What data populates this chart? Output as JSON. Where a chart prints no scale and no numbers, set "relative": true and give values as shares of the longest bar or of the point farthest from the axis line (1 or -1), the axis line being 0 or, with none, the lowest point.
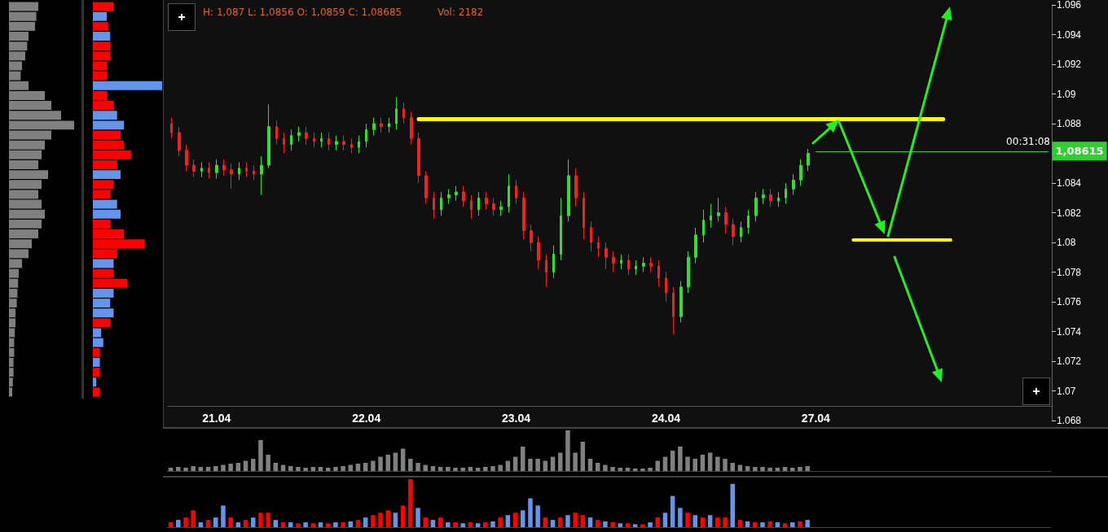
{
  "chart_data": [
    {
      "type": "bar",
      "orientation": "horizontal",
      "relative": true,
      "color": "#808080",
      "categories": [
        null,
        null,
        null,
        null,
        null,
        null,
        null,
        null,
        null,
        null,
        null,
        null,
        null,
        null,
        null,
        null,
        null,
        null,
        null,
        null,
        null,
        null,
        null,
        null,
        null,
        null,
        null,
        null,
        null,
        null,
        null,
        null,
        null,
        null,
        null,
        null,
        null,
        null,
        null,
        null
      ],
      "values": [
        0.45,
        0.42,
        0.4,
        0.3,
        0.28,
        0.25,
        0.2,
        0.18,
        0.3,
        0.55,
        0.65,
        0.8,
        1.0,
        0.65,
        0.55,
        0.5,
        0.45,
        0.6,
        0.5,
        0.45,
        0.5,
        0.55,
        0.5,
        0.45,
        0.35,
        0.3,
        0.2,
        0.15,
        0.14,
        0.13,
        0.12,
        0.1,
        0.1,
        0.09,
        0.08,
        0.08,
        0.07,
        0.07,
        0.06,
        0.05
      ]
    },
    {
      "type": "bar",
      "orientation": "horizontal",
      "relative": true,
      "categories": [
        null,
        null,
        null,
        null,
        null,
        null,
        null,
        null,
        null,
        null,
        null,
        null,
        null,
        null,
        null,
        null,
        null,
        null,
        null,
        null,
        null,
        null,
        null,
        null,
        null,
        null,
        null,
        null,
        null,
        null,
        null,
        null,
        null,
        null,
        null,
        null,
        null,
        null,
        null,
        null
      ],
      "values": [
        0.3,
        0.2,
        0.22,
        0.25,
        0.25,
        0.25,
        0.2,
        0.2,
        1.0,
        0.2,
        0.3,
        0.35,
        0.45,
        0.4,
        0.45,
        0.55,
        0.35,
        0.4,
        0.3,
        0.25,
        0.35,
        0.4,
        0.25,
        0.45,
        0.75,
        0.35,
        0.3,
        0.3,
        0.5,
        0.3,
        0.25,
        0.3,
        0.25,
        0.12,
        0.15,
        0.1,
        0.1,
        0.1,
        0.05,
        0.1
      ],
      "colors": [
        "#ff0000",
        "#6495ed",
        "#ff0000",
        "#6495ed",
        "#ff0000",
        "#ff0000",
        "#ff0000",
        "#ff0000",
        "#6495ed",
        "#ff0000",
        "#ff0000",
        "#6495ed",
        "#6495ed",
        "#ff0000",
        "#ff0000",
        "#ff0000",
        "#ff0000",
        "#6495ed",
        "#ff0000",
        "#ff0000",
        "#6495ed",
        "#6495ed",
        "#ff0000",
        "#ff0000",
        "#ff0000",
        "#ff0000",
        "#6495ed",
        "#ff0000",
        "#ff0000",
        "#6495ed",
        "#6495ed",
        "#6495ed",
        "#ff0000",
        "#6495ed",
        "#6495ed",
        "#ff0000",
        "#6495ed",
        "#ff0000",
        "#6495ed",
        "#ff0000"
      ]
    },
    {
      "type": "candlestick",
      "annotations": [
        "H: 1,087 L: 1,0856 O: 1,0859 C: 1,08685",
        "Vol: 2182",
        "00:31:08"
      ],
      "categories": [
        null,
        null,
        null,
        null,
        null,
        null,
        "21.04",
        null,
        null,
        null,
        null,
        null,
        null,
        null,
        null,
        null,
        null,
        null,
        null,
        null,
        null,
        null,
        null,
        null,
        null,
        null,
        "22.04",
        null,
        null,
        null,
        null,
        null,
        null,
        null,
        null,
        null,
        null,
        null,
        null,
        null,
        null,
        null,
        null,
        null,
        null,
        null,
        "23.04",
        null,
        null,
        null,
        null,
        null,
        null,
        null,
        null,
        null,
        null,
        null,
        null,
        null,
        null,
        null,
        null,
        null,
        null,
        null,
        "24.04",
        null,
        null,
        null,
        null,
        null,
        null,
        null,
        null,
        null,
        null,
        null,
        null,
        null,
        null,
        null,
        null,
        null,
        null,
        null,
        "27.04",
        null,
        null,
        null,
        null,
        null,
        null,
        null,
        null,
        null,
        null,
        null,
        null,
        null,
        null,
        null,
        null,
        null,
        null,
        null,
        null,
        null,
        null,
        null,
        null,
        null,
        null,
        null,
        null,
        null,
        null,
        null
      ],
      "ohlc": [
        [
          1.088,
          1.0884,
          1.087,
          1.0874
        ],
        [
          1.0874,
          1.0878,
          1.0858,
          1.0862
        ],
        [
          1.0862,
          1.0866,
          1.0848,
          1.0852
        ],
        [
          1.0852,
          1.0856,
          1.0844,
          1.0848
        ],
        [
          1.0848,
          1.0854,
          1.0844,
          1.085
        ],
        [
          1.085,
          1.0854,
          1.0843,
          1.0847
        ],
        [
          1.0847,
          1.0856,
          1.0843,
          1.0852
        ],
        [
          1.0852,
          1.0856,
          1.0845,
          1.0849
        ],
        [
          1.0849,
          1.0853,
          1.0836,
          1.0846
        ],
        [
          1.0846,
          1.0854,
          1.0842,
          1.085
        ],
        [
          1.085,
          1.0854,
          1.0844,
          1.0848
        ],
        [
          1.0848,
          1.0852,
          1.0842,
          1.0846
        ],
        [
          1.0846,
          1.0858,
          1.0832,
          1.0852
        ],
        [
          1.0852,
          1.0893,
          1.085,
          1.0878
        ],
        [
          1.0878,
          1.0882,
          1.0866,
          1.087
        ],
        [
          1.087,
          1.0874,
          1.086,
          1.0866
        ],
        [
          1.0866,
          1.0876,
          1.0862,
          1.0872
        ],
        [
          1.0872,
          1.0878,
          1.0868,
          1.0874
        ],
        [
          1.0874,
          1.0878,
          1.0866,
          1.087
        ],
        [
          1.087,
          1.0874,
          1.0864,
          1.0868
        ],
        [
          1.0868,
          1.0874,
          1.0864,
          1.087
        ],
        [
          1.087,
          1.0874,
          1.0862,
          1.0866
        ],
        [
          1.0866,
          1.0872,
          1.0862,
          1.0868
        ],
        [
          1.0868,
          1.0872,
          1.0862,
          1.0866
        ],
        [
          1.0866,
          1.087,
          1.086,
          1.0864
        ],
        [
          1.0864,
          1.0872,
          1.086,
          1.0868
        ],
        [
          1.0868,
          1.088,
          1.0864,
          1.0876
        ],
        [
          1.0876,
          1.0884,
          1.0872,
          1.088
        ],
        [
          1.088,
          1.0884,
          1.0874,
          1.0878
        ],
        [
          1.0878,
          1.0884,
          1.0874,
          1.088
        ],
        [
          1.088,
          1.0898,
          1.0876,
          1.089
        ],
        [
          1.089,
          1.0894,
          1.088,
          1.0884
        ],
        [
          1.0884,
          1.0888,
          1.0866,
          1.087
        ],
        [
          1.087,
          1.0874,
          1.084,
          1.0845
        ],
        [
          1.0845,
          1.0848,
          1.0826,
          1.083
        ],
        [
          1.083,
          1.0834,
          1.0816,
          1.0822
        ],
        [
          1.0822,
          1.0834,
          1.0818,
          1.083
        ],
        [
          1.083,
          1.0836,
          1.0826,
          1.0832
        ],
        [
          1.0832,
          1.0838,
          1.0828,
          1.0834
        ],
        [
          1.0834,
          1.0838,
          1.0824,
          1.0828
        ],
        [
          1.0828,
          1.0832,
          1.0816,
          1.0822
        ],
        [
          1.0822,
          1.0834,
          1.0818,
          1.083
        ],
        [
          1.083,
          1.0834,
          1.0822,
          1.0826
        ],
        [
          1.0826,
          1.083,
          1.0818,
          1.0822
        ],
        [
          1.0822,
          1.0828,
          1.0818,
          1.0824
        ],
        [
          1.0824,
          1.0846,
          1.082,
          1.0838
        ],
        [
          1.0838,
          1.0842,
          1.0826,
          1.083
        ],
        [
          1.083,
          1.0834,
          1.0802,
          1.0808
        ],
        [
          1.0808,
          1.0812,
          1.0794,
          1.08
        ],
        [
          1.08,
          1.0804,
          1.0782,
          1.0788
        ],
        [
          1.0788,
          1.0792,
          1.077,
          1.078
        ],
        [
          1.078,
          1.0798,
          1.0776,
          1.0792
        ],
        [
          1.0792,
          1.083,
          1.0788,
          1.0818
        ],
        [
          1.0818,
          1.0856,
          1.0814,
          1.0845
        ],
        [
          1.0845,
          1.085,
          1.0824,
          1.083
        ],
        [
          1.083,
          1.0834,
          1.0802,
          1.081
        ],
        [
          1.081,
          1.0814,
          1.0794,
          1.08
        ],
        [
          1.08,
          1.0804,
          1.079,
          1.0796
        ],
        [
          1.0796,
          1.08,
          1.0782,
          1.079
        ],
        [
          1.079,
          1.0794,
          1.078,
          1.0786
        ],
        [
          1.0786,
          1.0792,
          1.0782,
          1.0788
        ],
        [
          1.0788,
          1.0792,
          1.0778,
          1.0782
        ],
        [
          1.0782,
          1.0788,
          1.0778,
          1.0784
        ],
        [
          1.0784,
          1.079,
          1.078,
          1.0786
        ],
        [
          1.0786,
          1.079,
          1.078,
          1.0784
        ],
        [
          1.0784,
          1.0788,
          1.077,
          1.0776
        ],
        [
          1.0776,
          1.078,
          1.076,
          1.0766
        ],
        [
          1.0766,
          1.077,
          1.0738,
          1.075
        ],
        [
          1.075,
          1.0774,
          1.0746,
          1.077
        ],
        [
          1.077,
          1.0794,
          1.0766,
          1.079
        ],
        [
          1.079,
          1.081,
          1.0786,
          1.0805
        ],
        [
          1.0805,
          1.0822,
          1.08,
          1.0815
        ],
        [
          1.0815,
          1.0826,
          1.081,
          1.0818
        ],
        [
          1.0818,
          1.083,
          1.0814,
          1.082
        ],
        [
          1.082,
          1.0824,
          1.0806,
          1.0812
        ],
        [
          1.0812,
          1.0816,
          1.0798,
          1.0804
        ],
        [
          1.0804,
          1.0814,
          1.08,
          1.081
        ],
        [
          1.081,
          1.0822,
          1.0806,
          1.0818
        ],
        [
          1.0818,
          1.0834,
          1.0814,
          1.083
        ],
        [
          1.083,
          1.0836,
          1.0826,
          1.0832
        ],
        [
          1.0832,
          1.0836,
          1.0824,
          1.0828
        ],
        [
          1.0828,
          1.0834,
          1.0824,
          1.083
        ],
        [
          1.083,
          1.084,
          1.0826,
          1.0836
        ],
        [
          1.0836,
          1.0846,
          1.0832,
          1.0842
        ],
        [
          1.0842,
          1.0856,
          1.0838,
          1.0852
        ],
        [
          1.0852,
          1.0863,
          1.0848,
          1.086
        ],
        null,
        null,
        null,
        null,
        null,
        null,
        null,
        null,
        null,
        null,
        null,
        null,
        null,
        null,
        null,
        null,
        null,
        null,
        null,
        null,
        null,
        null,
        null,
        null,
        null,
        null,
        null,
        null,
        null,
        null,
        null,
        null
      ],
      "ylim": [
        1.068,
        1.096
      ],
      "yticks": [
        1.068,
        1.07,
        1.072,
        1.074,
        1.076,
        1.078,
        1.08,
        1.082,
        1.084,
        {
          "value": 1.086,
          "label": null
        },
        1.088,
        1.09,
        1.092,
        1.094,
        1.096
      ],
      "ref_lines": [
        {
          "axis": "y",
          "value": 1.0883,
          "color": "#ffff00"
        },
        {
          "axis": "y",
          "value": 1.0802,
          "color": "#ffff00"
        },
        {
          "axis": "y",
          "value": 1.08615,
          "label": "1,08615",
          "color": "#33cc33"
        }
      ]
    },
    {
      "type": "bar",
      "relative": true,
      "color": "#808080",
      "categories": [
        null,
        null,
        null,
        null,
        null,
        null,
        null,
        null,
        null,
        null,
        null,
        null,
        null,
        null,
        null,
        null,
        null,
        null,
        null,
        null,
        null,
        null,
        null,
        null,
        null,
        null,
        null,
        null,
        null,
        null,
        null,
        null,
        null,
        null,
        null,
        null,
        null,
        null,
        null,
        null,
        null,
        null,
        null,
        null,
        null,
        null,
        null,
        null,
        null,
        null,
        null,
        null,
        null,
        null,
        null,
        null,
        null,
        null,
        null,
        null,
        null,
        null,
        null,
        null,
        null,
        null,
        null,
        null,
        null,
        null,
        null,
        null,
        null,
        null,
        null,
        null,
        null,
        null,
        null,
        null,
        null,
        null,
        null,
        null,
        null,
        null,
        null,
        null,
        null,
        null,
        null,
        null,
        null,
        null,
        null,
        null,
        null,
        null,
        null,
        null,
        null,
        null,
        null,
        null,
        null,
        null,
        null,
        null,
        null,
        null,
        null,
        null,
        null,
        null,
        null,
        null,
        null,
        null
      ],
      "values": [
        0.08,
        0.1,
        0.08,
        0.12,
        0.1,
        0.1,
        0.12,
        0.15,
        0.18,
        0.2,
        0.25,
        0.3,
        0.76,
        0.4,
        0.2,
        0.15,
        0.12,
        0.1,
        0.08,
        0.1,
        0.1,
        0.08,
        0.1,
        0.12,
        0.15,
        0.18,
        0.2,
        0.25,
        0.35,
        0.4,
        0.45,
        0.55,
        0.3,
        0.2,
        0.15,
        0.12,
        0.1,
        0.1,
        0.08,
        0.08,
        0.1,
        0.08,
        0.1,
        0.12,
        0.15,
        0.25,
        0.35,
        0.6,
        0.3,
        0.3,
        0.25,
        0.35,
        0.45,
        1.0,
        0.45,
        0.72,
        0.3,
        0.2,
        0.15,
        0.1,
        0.08,
        0.08,
        0.06,
        0.06,
        0.08,
        0.25,
        0.35,
        0.5,
        0.6,
        0.35,
        0.3,
        0.4,
        0.45,
        0.35,
        0.3,
        0.2,
        0.15,
        0.12,
        0.1,
        0.1,
        0.08,
        0.08,
        0.1,
        0.08,
        0.1,
        0.12,
        null,
        null,
        null,
        null,
        null,
        null,
        null,
        null,
        null,
        null,
        null,
        null,
        null,
        null,
        null,
        null,
        null,
        null,
        null,
        null,
        null,
        null,
        null,
        null,
        null,
        null,
        null,
        null,
        null,
        null,
        null,
        null
      ]
    },
    {
      "type": "bar",
      "relative": true,
      "categories": [
        null,
        null,
        null,
        null,
        null,
        null,
        null,
        null,
        null,
        null,
        null,
        null,
        null,
        null,
        null,
        null,
        null,
        null,
        null,
        null,
        null,
        null,
        null,
        null,
        null,
        null,
        null,
        null,
        null,
        null,
        null,
        null,
        null,
        null,
        null,
        null,
        null,
        null,
        null,
        null,
        null,
        null,
        null,
        null,
        null,
        null,
        null,
        null,
        null,
        null,
        null,
        null,
        null,
        null,
        null,
        null,
        null,
        null,
        null,
        null,
        null,
        null,
        null,
        null,
        null,
        null,
        null,
        null,
        null,
        null,
        null,
        null,
        null,
        null,
        null,
        null,
        null,
        null,
        null,
        null,
        null,
        null,
        null,
        null,
        null,
        null,
        null,
        null,
        null,
        null,
        null,
        null,
        null,
        null,
        null,
        null,
        null,
        null,
        null,
        null,
        null,
        null,
        null,
        null,
        null,
        null,
        null,
        null,
        null,
        null,
        null,
        null,
        null,
        null,
        null,
        null,
        null,
        null
      ],
      "values": [
        0.1,
        0.15,
        0.2,
        0.35,
        0.1,
        0.15,
        0.2,
        0.45,
        0.2,
        0.1,
        0.15,
        0.2,
        0.3,
        0.3,
        0.15,
        0.1,
        0.1,
        0.08,
        0.1,
        0.08,
        0.1,
        0.08,
        0.1,
        0.1,
        0.12,
        0.15,
        0.2,
        0.25,
        0.3,
        0.35,
        0.3,
        0.45,
        1.0,
        0.4,
        0.2,
        0.15,
        0.2,
        0.1,
        0.1,
        0.08,
        0.1,
        0.08,
        0.1,
        0.12,
        0.2,
        0.25,
        0.3,
        0.35,
        0.6,
        0.45,
        0.2,
        0.15,
        0.2,
        0.25,
        0.3,
        0.25,
        0.2,
        0.15,
        0.12,
        0.1,
        0.08,
        0.08,
        0.06,
        0.06,
        0.1,
        0.2,
        0.3,
        0.65,
        0.4,
        0.3,
        0.25,
        0.2,
        0.25,
        0.2,
        0.2,
        0.9,
        0.15,
        0.12,
        0.1,
        0.1,
        0.12,
        0.1,
        0.08,
        0.1,
        0.12,
        0.15,
        null,
        null,
        null,
        null,
        null,
        null,
        null,
        null,
        null,
        null,
        null,
        null,
        null,
        null,
        null,
        null,
        null,
        null,
        null,
        null,
        null,
        null,
        null,
        null,
        null,
        null,
        null,
        null,
        null,
        null,
        null,
        null
      ],
      "colors": [
        "#ff0000",
        "#6495ed",
        "#ff0000",
        "#ff0000",
        "#6495ed",
        "#ff0000",
        "#6495ed",
        "#6495ed",
        "#ff0000",
        "#6495ed",
        "#ff0000",
        "#6495ed",
        "#ff0000",
        "#ff0000",
        "#6495ed",
        "#ff0000",
        "#6495ed",
        "#ff0000",
        "#6495ed",
        "#ff0000",
        "#6495ed",
        "#ff0000",
        "#6495ed",
        "#ff0000",
        "#6495ed",
        "#ff0000",
        "#6495ed",
        "#ff0000",
        "#ff0000",
        "#ff0000",
        "#6495ed",
        "#ff0000",
        "#ff0000",
        "#6495ed",
        "#ff0000",
        "#6495ed",
        "#ff0000",
        "#6495ed",
        "#ff0000",
        "#6495ed",
        "#ff0000",
        "#6495ed",
        "#ff0000",
        "#6495ed",
        "#ff0000",
        "#6495ed",
        "#ff0000",
        "#6495ed",
        "#6495ed",
        "#6495ed",
        "#ff0000",
        "#6495ed",
        "#ff0000",
        "#6495ed",
        "#ff0000",
        "#ff0000",
        "#6495ed",
        "#ff0000",
        "#6495ed",
        "#ff0000",
        "#6495ed",
        "#ff0000",
        "#6495ed",
        "#ff0000",
        "#6495ed",
        "#ff0000",
        "#6495ed",
        "#6495ed",
        "#6495ed",
        "#ff0000",
        "#6495ed",
        "#ff0000",
        "#6495ed",
        "#ff0000",
        "#ff0000",
        "#6495ed",
        "#ff0000",
        "#6495ed",
        "#ff0000",
        "#6495ed",
        "#ff0000",
        "#6495ed",
        "#ff0000",
        "#6495ed",
        "#ff0000",
        "#6495ed",
        null,
        null,
        null,
        null,
        null,
        null,
        null,
        null,
        null,
        null,
        null,
        null,
        null,
        null,
        null,
        null,
        null,
        null,
        null,
        null,
        null,
        null,
        null,
        null,
        null,
        null,
        null,
        null,
        null,
        null,
        null,
        null
      ]
    }
  ]
}
